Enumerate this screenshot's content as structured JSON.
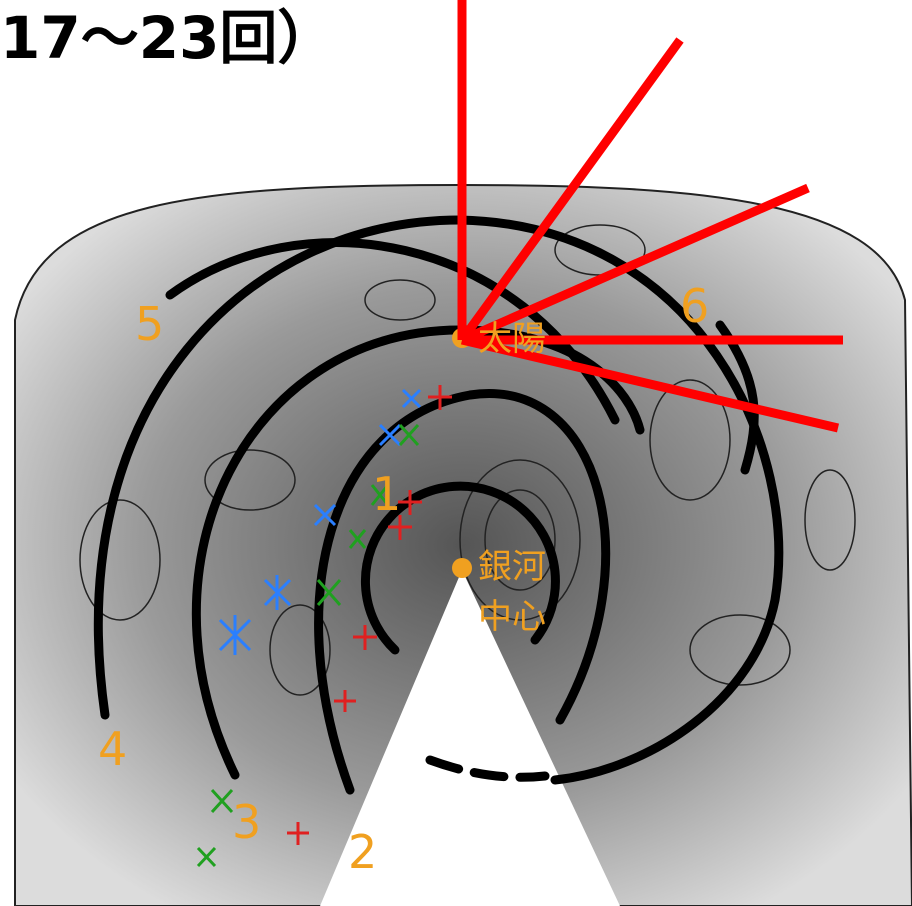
{
  "header": {
    "title": "17〜23回）"
  },
  "labels": {
    "arms": [
      "5",
      "6",
      "4",
      "3",
      "2",
      "1"
    ],
    "sun": "太陽",
    "center": [
      "銀河",
      "中心"
    ]
  }
}
